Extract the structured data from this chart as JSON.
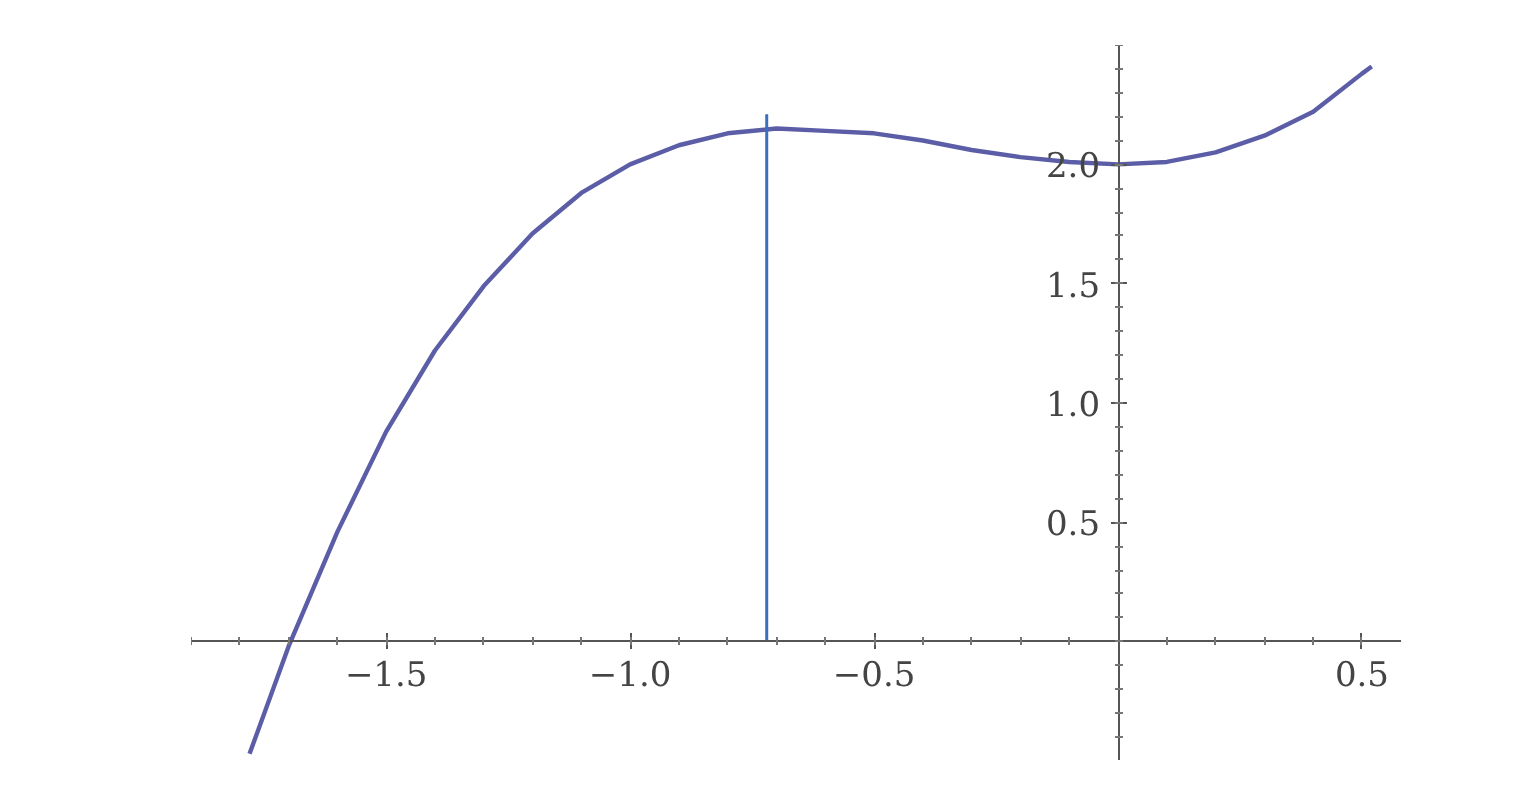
{
  "chart_data": {
    "type": "line",
    "x": [
      -1.78,
      -1.7,
      -1.6,
      -1.5,
      -1.4,
      -1.3,
      -1.2,
      -1.1,
      -1.0,
      -0.9,
      -0.8,
      -0.7,
      -0.6,
      -0.5,
      -0.4,
      -0.3,
      -0.2,
      -0.1,
      0,
      0.1,
      0.2,
      0.3,
      0.4,
      0.5,
      0.52
    ],
    "series": [
      {
        "color": "#5b5ea6",
        "values": [
          -0.47,
          -0.02,
          0.46,
          0.88,
          1.22,
          1.49,
          1.71,
          1.88,
          2.0,
          2.08,
          2.13,
          2.15,
          2.14,
          2.13,
          2.1,
          2.06,
          2.03,
          2.01,
          2.0,
          2.01,
          2.05,
          2.12,
          2.22,
          2.38,
          2.41
        ]
      },
      {
        "color": "#3a6fc0",
        "x": [
          -0.72,
          -0.72
        ],
        "values": [
          0,
          2.21
        ]
      }
    ],
    "xlim": [
      -1.9,
      0.58
    ],
    "ylim": [
      -0.5,
      2.5
    ],
    "xticks": [
      {
        "value": -1.5,
        "label": "−1.5"
      },
      {
        "value": -1.0,
        "label": "−1.0"
      },
      {
        "value": -0.5,
        "label": "−0.5"
      },
      {
        "value": 0.5,
        "label": "0.5"
      }
    ],
    "yticks": [
      {
        "value": 0.5,
        "label": "0.5"
      },
      {
        "value": 1.0,
        "label": "1.0"
      },
      {
        "value": 1.5,
        "label": "1.5"
      },
      {
        "value": 2.0,
        "label": "2.0"
      }
    ],
    "grid": false
  }
}
